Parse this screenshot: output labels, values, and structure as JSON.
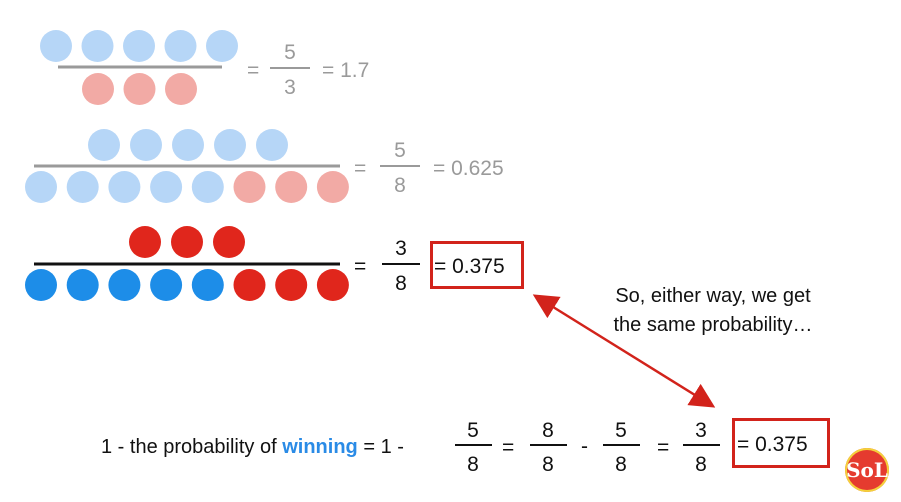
{
  "colors": {
    "blue_light": "#b6d6f7",
    "red_light": "#f2aaa5",
    "blue": "#1d8de8",
    "red": "#e0261c",
    "gray": "#9a9a9a",
    "highlight_box": "#d2231b"
  },
  "row1": {
    "top_circles": 5,
    "bottom_circles": 3,
    "num": "5",
    "den": "3",
    "result": "= 1.7",
    "eq": "="
  },
  "row2": {
    "top_circles": 5,
    "bottom_blue": 5,
    "bottom_red": 3,
    "num": "5",
    "den": "8",
    "result": "= 0.625",
    "eq": "="
  },
  "row3": {
    "top_red": 3,
    "bottom_blue": 5,
    "bottom_red": 3,
    "num": "3",
    "den": "8",
    "result": "= 0.375",
    "eq": "="
  },
  "callout": {
    "line1": "So, either way, we get",
    "line2": "the same probability…"
  },
  "equation": {
    "prefix": "1 - the probability of",
    "keyword": "winning",
    "part2": "= 1 -",
    "f1": {
      "num": "5",
      "den": "8"
    },
    "eq1": "=",
    "f2": {
      "num": "8",
      "den": "8"
    },
    "minus": "-",
    "f3": {
      "num": "5",
      "den": "8"
    },
    "eq2": "=",
    "f4": {
      "num": "3",
      "den": "8"
    },
    "result": "= 0.375"
  },
  "logo": {
    "icon": "sol-logo-icon",
    "text": "SoL"
  }
}
